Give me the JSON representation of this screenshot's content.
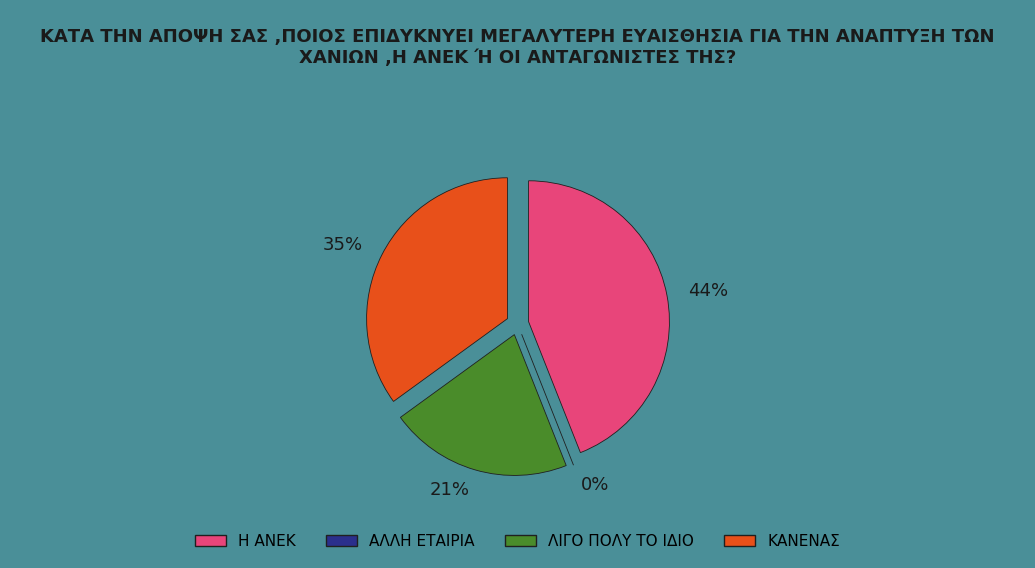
{
  "chart_data": {
    "type": "pie",
    "title": "ΚΑΤΑ ΤΗΝ ΑΠΟΨΗ ΣΑΣ ,ΠΟΙΟΣ ΕΠΙΔΥΚΝΥΕΙ ΜΕΓΑΛΥΤΕΡΗ ΕΥΑΙΣΘΗΣΙΑ ΓΙΑ ΤΗΝ ΑΝΑΠΤΥΞΗ ΤΩΝ ΧΑΝΙΩΝ ,Η ΑΝΕΚ Ή ΟΙ ΑΝΤΑΓΩΝΙΣΤΕΣ ΤΗΣ?",
    "categories": [
      "Η ΑΝΕΚ",
      "ΑΛΛΗ ΕΤΑΙΡΙΑ",
      "ΛΙΓΟ ΠΟΛΥ ΤΟ ΙΔΙΟ",
      "ΚΑΝΕΝΑΣ"
    ],
    "values": [
      44,
      0,
      21,
      35
    ],
    "value_labels": [
      "44%",
      "0%",
      "21%",
      "35%"
    ],
    "colors": [
      "#e8457a",
      "#2b2f8c",
      "#4a8c2a",
      "#e8501a"
    ],
    "data_labels": true,
    "legend": "lower center"
  }
}
